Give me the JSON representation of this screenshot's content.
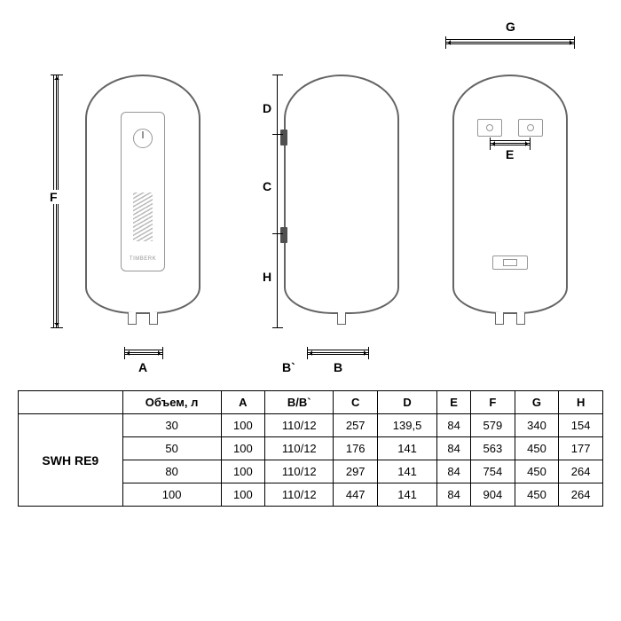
{
  "brand_text": "TIMBERK",
  "dim_labels": {
    "F": "F",
    "A": "A",
    "D": "D",
    "C": "C",
    "H": "H",
    "B": "B",
    "Bprime": "B`",
    "G": "G",
    "E": "E"
  },
  "table": {
    "model": "SWH RE9",
    "headers": [
      "Объем, л",
      "A",
      "B/B`",
      "C",
      "D",
      "E",
      "F",
      "G",
      "H"
    ],
    "rows": [
      [
        "30",
        "100",
        "110/12",
        "257",
        "139,5",
        "84",
        "579",
        "340",
        "154"
      ],
      [
        "50",
        "100",
        "110/12",
        "176",
        "141",
        "84",
        "563",
        "450",
        "177"
      ],
      [
        "80",
        "100",
        "110/12",
        "297",
        "141",
        "84",
        "754",
        "450",
        "264"
      ],
      [
        "100",
        "100",
        "110/12",
        "447",
        "141",
        "84",
        "904",
        "450",
        "264"
      ]
    ]
  },
  "colors": {
    "stroke_dark": "#646464",
    "stroke_light": "#969696",
    "background": "#ffffff",
    "table_border": "#000000"
  }
}
